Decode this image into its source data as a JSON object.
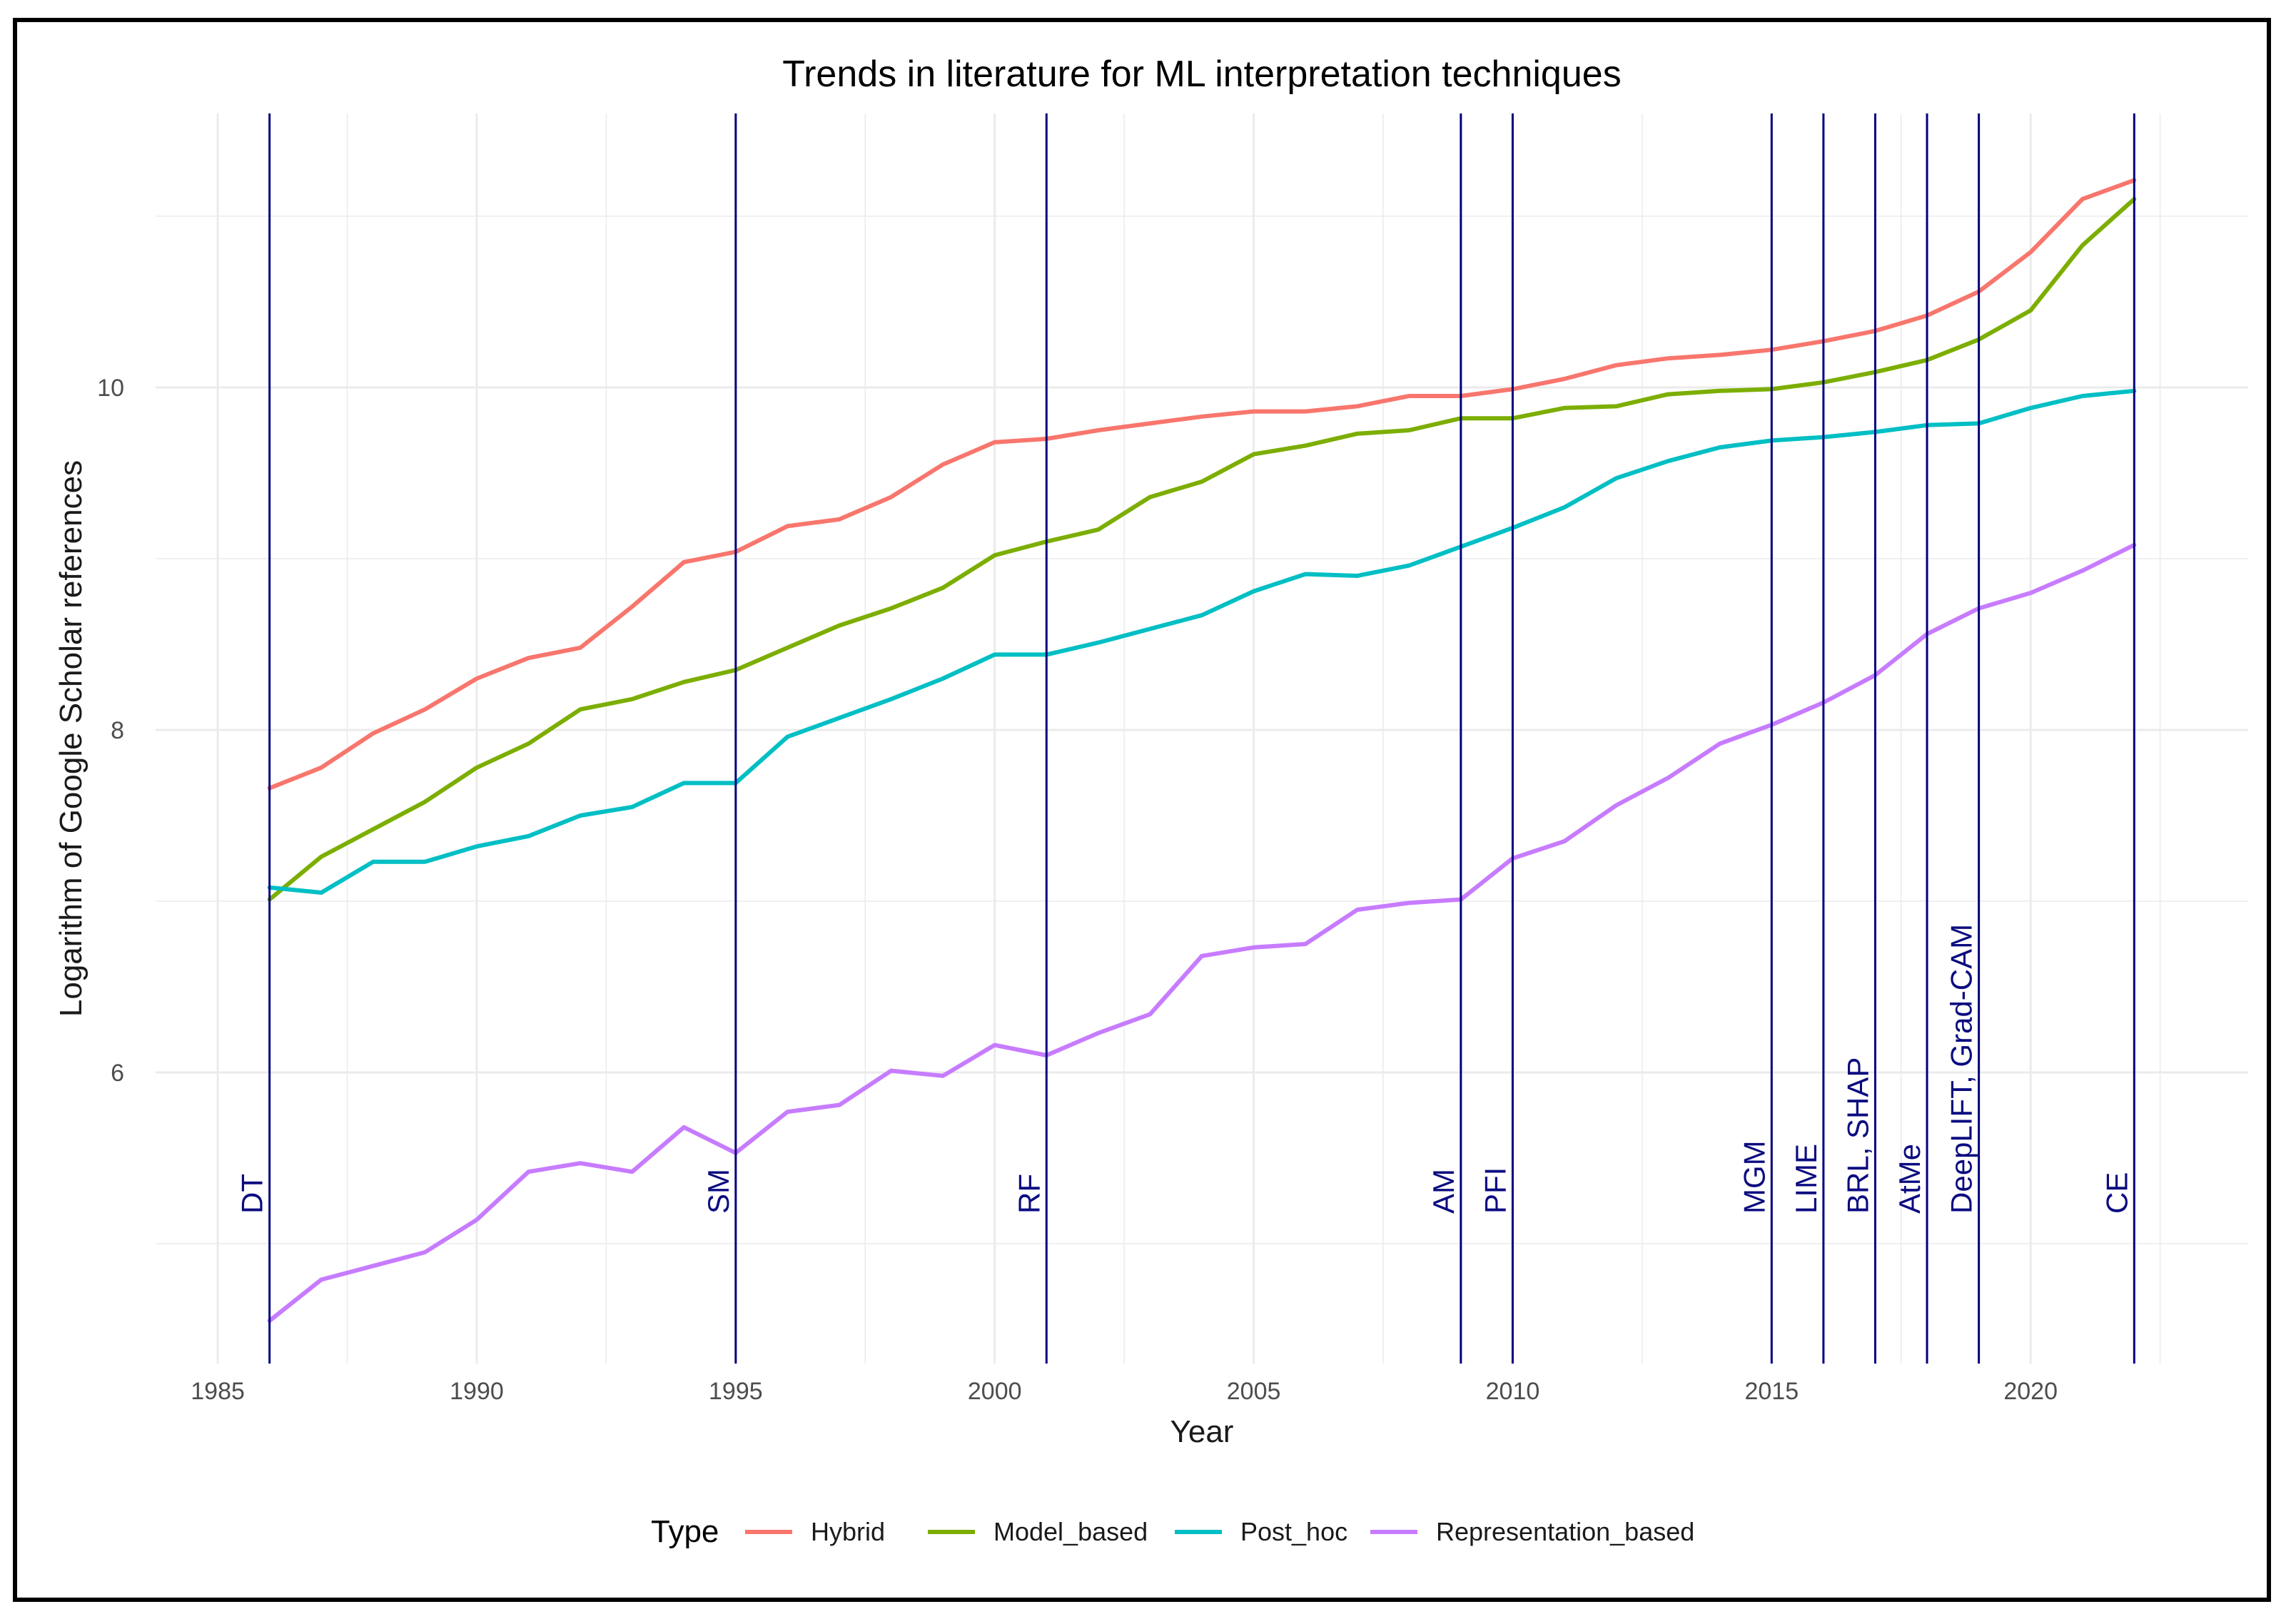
{
  "chart_data": {
    "type": "line",
    "title": "Trends in literature for ML interpretation techniques",
    "xlabel": "Year",
    "ylabel": "Logarithm of Google Scholar references",
    "xlim": [
      1983.8,
      2024.2
    ],
    "ylim": [
      4.3,
      11.6
    ],
    "xticks": [
      1985,
      1990,
      1995,
      2000,
      2005,
      2010,
      2015,
      2020
    ],
    "yticks": [
      6,
      8,
      10
    ],
    "grid": true,
    "legend": {
      "title": "Type",
      "position": "bottom"
    },
    "x": [
      1986,
      1987,
      1988,
      1989,
      1990,
      1991,
      1992,
      1993,
      1994,
      1995,
      1996,
      1997,
      1998,
      1999,
      2000,
      2001,
      2002,
      2003,
      2004,
      2005,
      2006,
      2007,
      2008,
      2009,
      2010,
      2011,
      2012,
      2013,
      2014,
      2015,
      2016,
      2017,
      2018,
      2019,
      2020,
      2021,
      2022
    ],
    "series": [
      {
        "name": "Hybrid",
        "color": "#F8766D",
        "values": [
          7.66,
          7.78,
          7.98,
          8.12,
          8.3,
          8.42,
          8.48,
          8.72,
          8.98,
          9.04,
          9.19,
          9.23,
          9.36,
          9.55,
          9.68,
          9.7,
          9.75,
          9.79,
          9.83,
          9.86,
          9.86,
          9.89,
          9.95,
          9.95,
          9.99,
          10.05,
          10.13,
          10.17,
          10.19,
          10.22,
          10.27,
          10.33,
          10.42,
          10.56,
          10.79,
          11.1,
          11.21
        ]
      },
      {
        "name": "Model_based",
        "color": "#7CAE00",
        "values": [
          7.01,
          7.26,
          7.42,
          7.58,
          7.78,
          7.92,
          8.12,
          8.18,
          8.28,
          8.35,
          8.48,
          8.61,
          8.71,
          8.83,
          9.02,
          9.1,
          9.17,
          9.36,
          9.45,
          9.61,
          9.66,
          9.73,
          9.75,
          9.82,
          9.82,
          9.88,
          9.89,
          9.96,
          9.98,
          9.99,
          10.03,
          10.09,
          10.16,
          10.28,
          10.45,
          10.83,
          11.1
        ]
      },
      {
        "name": "Post_hoc",
        "color": "#00BFC4",
        "values": [
          7.08,
          7.05,
          7.23,
          7.23,
          7.32,
          7.38,
          7.5,
          7.55,
          7.69,
          7.69,
          7.96,
          8.07,
          8.18,
          8.3,
          8.44,
          8.44,
          8.51,
          8.59,
          8.67,
          8.81,
          8.91,
          8.9,
          8.96,
          9.07,
          9.18,
          9.3,
          9.47,
          9.57,
          9.65,
          9.69,
          9.71,
          9.74,
          9.78,
          9.79,
          9.88,
          9.95,
          9.98
        ]
      },
      {
        "name": "Representation_based",
        "color": "#C77CFF",
        "values": [
          4.55,
          4.79,
          4.87,
          4.95,
          5.14,
          5.42,
          5.47,
          5.42,
          5.68,
          5.53,
          5.77,
          5.81,
          6.01,
          5.98,
          6.16,
          6.1,
          6.23,
          6.34,
          6.68,
          6.73,
          6.75,
          6.95,
          6.99,
          7.01,
          7.25,
          7.35,
          7.56,
          7.72,
          7.92,
          8.03,
          8.16,
          8.32,
          8.56,
          8.71,
          8.8,
          8.93,
          9.08
        ]
      }
    ],
    "events": [
      {
        "year": 1986,
        "label": "DT"
      },
      {
        "year": 1995,
        "label": "SM"
      },
      {
        "year": 2001,
        "label": "RF"
      },
      {
        "year": 2009,
        "label": "AM"
      },
      {
        "year": 2010,
        "label": "PFI"
      },
      {
        "year": 2015,
        "label": "MGM"
      },
      {
        "year": 2016,
        "label": "LIME"
      },
      {
        "year": 2017,
        "label": "BRL, SHAP"
      },
      {
        "year": 2018,
        "label": "AtMe"
      },
      {
        "year": 2019,
        "label": "DeepLIFT, Grad-CAM"
      },
      {
        "year": 2022,
        "label": "CE"
      }
    ],
    "event_line_color": "#00007F",
    "grid_color": "#EBEBEB"
  }
}
